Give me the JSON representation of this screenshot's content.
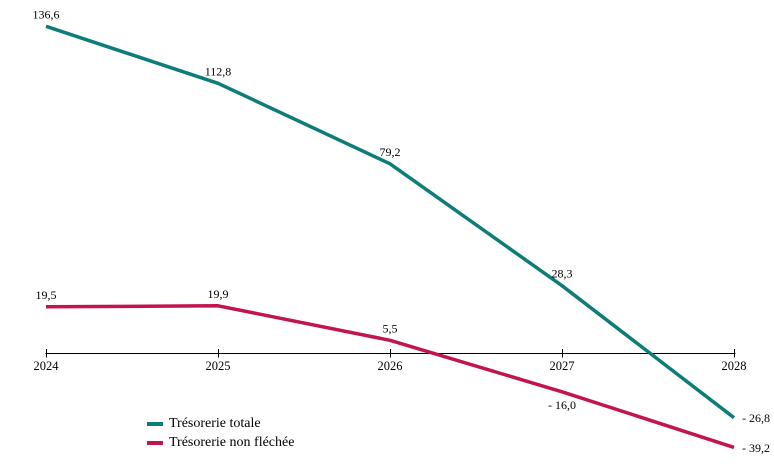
{
  "chart_data": {
    "type": "line",
    "x": [
      2024,
      2025,
      2026,
      2027,
      2028
    ],
    "x_tick_labels": [
      "2024",
      "2025",
      "2026",
      "2027",
      "2028"
    ],
    "series": [
      {
        "name": "Trésorerie totale",
        "color": "#0e7c79",
        "values": [
          136.6,
          112.8,
          79.2,
          28.3,
          -26.8
        ],
        "point_labels": [
          "136,6",
          "112,8",
          "79,2",
          "28,3",
          "- 26,8"
        ],
        "label_positions": [
          "above",
          "above",
          "above",
          "above",
          "right"
        ]
      },
      {
        "name": "Trésorerie non fléchée",
        "color": "#c2154d",
        "values": [
          19.5,
          19.9,
          5.5,
          -16.0,
          -39.2
        ],
        "point_labels": [
          "19,5",
          "19,9",
          "5,5",
          "- 16,0",
          "- 39,2"
        ],
        "label_positions": [
          "above",
          "above",
          "above",
          "below",
          "right"
        ]
      }
    ],
    "title": "",
    "xlabel": "",
    "ylabel": "",
    "ylim": [
      -45,
      145
    ],
    "grid": false,
    "legend_position": "bottom-left",
    "axis_color": "#000000",
    "text_color": "#000000"
  }
}
